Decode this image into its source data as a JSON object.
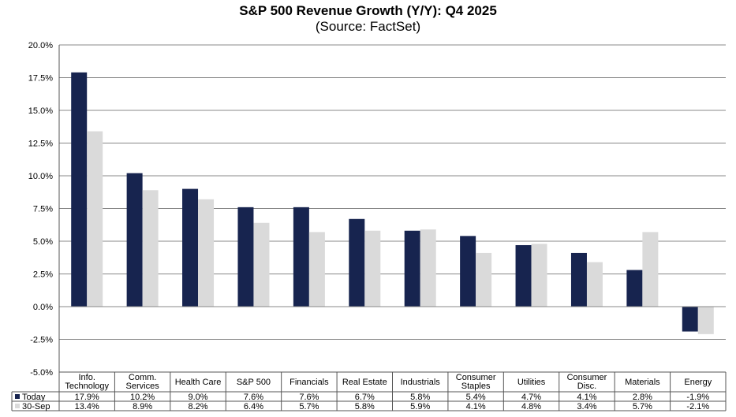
{
  "title": "S&P 500 Revenue Growth (Y/Y): Q4 2025",
  "subtitle": "(Source: FactSet)",
  "colors": {
    "today": "#17244f",
    "sep": "#dadada",
    "grid": "#888888",
    "border": "#555555"
  },
  "chart_data": {
    "type": "bar",
    "title": "S&P 500 Revenue Growth (Y/Y): Q4 2025",
    "subtitle": "(Source: FactSet)",
    "categories": [
      [
        "Info.",
        "Technology"
      ],
      [
        "Comm.",
        "Services"
      ],
      [
        "Health Care"
      ],
      [
        "S&P 500"
      ],
      [
        "Financials"
      ],
      [
        "Real Estate"
      ],
      [
        "Industrials"
      ],
      [
        "Consumer",
        "Staples"
      ],
      [
        "Utilities"
      ],
      [
        "Consumer",
        "Disc."
      ],
      [
        "Materials"
      ],
      [
        "Energy"
      ]
    ],
    "series": [
      {
        "name": "Today",
        "color": "#17244f",
        "values": [
          17.9,
          10.2,
          9.0,
          7.6,
          7.6,
          6.7,
          5.8,
          5.4,
          4.7,
          4.1,
          2.8,
          -1.9
        ],
        "labels": [
          "17.9%",
          "10.2%",
          "9.0%",
          "7.6%",
          "7.6%",
          "6.7%",
          "5.8%",
          "5.4%",
          "4.7%",
          "4.1%",
          "2.8%",
          "-1.9%"
        ]
      },
      {
        "name": "30-Sep",
        "color": "#dadada",
        "values": [
          13.4,
          8.9,
          8.2,
          6.4,
          5.7,
          5.8,
          5.9,
          4.1,
          4.8,
          3.4,
          5.7,
          -2.1
        ],
        "labels": [
          "13.4%",
          "8.9%",
          "8.2%",
          "6.4%",
          "5.7%",
          "5.8%",
          "5.9%",
          "4.1%",
          "4.8%",
          "3.4%",
          "5.7%",
          "-2.1%"
        ]
      }
    ],
    "ylim": [
      -5.0,
      20.0
    ],
    "yticks": [
      20.0,
      17.5,
      15.0,
      12.5,
      10.0,
      7.5,
      5.0,
      2.5,
      0.0,
      -2.5,
      -5.0
    ],
    "ytick_labels": [
      "20.0%",
      "17.5%",
      "15.0%",
      "12.5%",
      "10.0%",
      "7.5%",
      "5.0%",
      "2.5%",
      "0.0%",
      "-2.5%",
      "-5.0%"
    ],
    "grid": true,
    "legend": "data-table"
  }
}
